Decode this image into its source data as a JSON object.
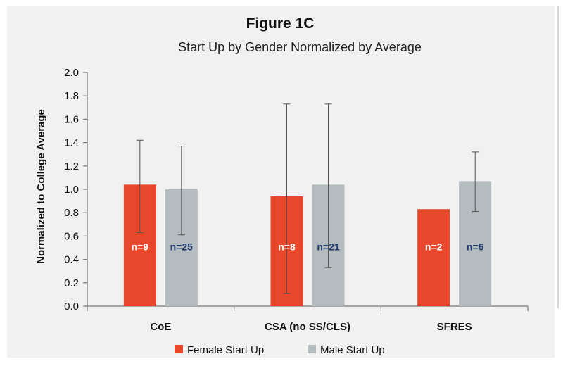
{
  "chart_data": {
    "type": "bar",
    "title": "Figure 1C",
    "subtitle": "Start Up by Gender Normalized by Average",
    "ylabel": "Normalized to College Average",
    "xlabel": "",
    "categories": [
      "CoE",
      "CSA (no SS/CLS)",
      "SFRES"
    ],
    "ylim": [
      0,
      2.0
    ],
    "yticks": [
      "0.0",
      "0.2",
      "0.4",
      "0.6",
      "0.8",
      "1.0",
      "1.2",
      "1.4",
      "1.6",
      "1.8",
      "2.0"
    ],
    "grid": false,
    "legend_position": "bottom",
    "series": [
      {
        "name": "Female Start Up",
        "color": "#e8472b",
        "values": [
          1.04,
          0.94,
          0.83
        ],
        "error_low": [
          0.63,
          0.11,
          0.83
        ],
        "error_high": [
          1.42,
          1.73,
          0.83
        ],
        "labels": [
          "n=9",
          "n=8",
          "n=2"
        ],
        "label_color": "#ffffff"
      },
      {
        "name": "Male Start Up",
        "color": "#b5bcc0",
        "values": [
          1.0,
          1.04,
          1.07
        ],
        "error_low": [
          0.61,
          0.33,
          0.81
        ],
        "error_high": [
          1.37,
          1.73,
          1.32
        ],
        "labels": [
          "n=25",
          "n=21",
          "n=6"
        ],
        "label_color": "#1f3a6e"
      }
    ]
  }
}
